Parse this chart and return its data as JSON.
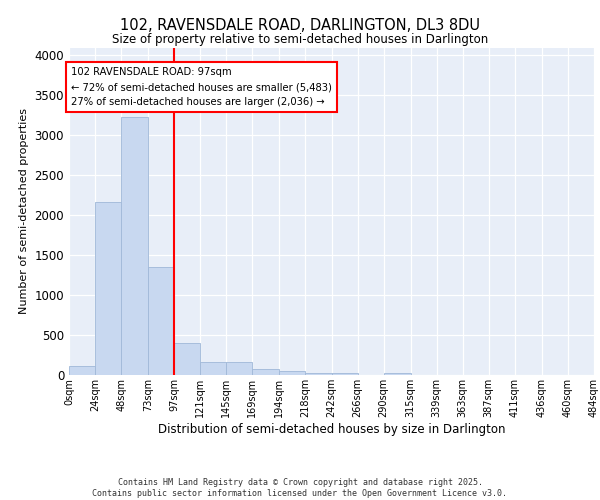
{
  "title": "102, RAVENSDALE ROAD, DARLINGTON, DL3 8DU",
  "subtitle": "Size of property relative to semi-detached houses in Darlington",
  "xlabel": "Distribution of semi-detached houses by size in Darlington",
  "ylabel": "Number of semi-detached properties",
  "bar_color": "#c8d8f0",
  "bar_edge_color": "#a0b8d8",
  "red_line_x": 97,
  "annotation_text": "102 RAVENSDALE ROAD: 97sqm\n← 72% of semi-detached houses are smaller (5,483)\n27% of semi-detached houses are larger (2,036) →",
  "annotation_box_color": "white",
  "annotation_box_edge": "red",
  "bin_edges": [
    0,
    24,
    48,
    73,
    97,
    121,
    145,
    169,
    194,
    218,
    242,
    266,
    290,
    315,
    339,
    363,
    387,
    411,
    436,
    460,
    484
  ],
  "bar_heights": [
    110,
    2160,
    3230,
    1350,
    405,
    160,
    160,
    80,
    55,
    30,
    30,
    0,
    30,
    0,
    0,
    0,
    0,
    0,
    0,
    0
  ],
  "ylim": [
    0,
    4100
  ],
  "yticks": [
    0,
    500,
    1000,
    1500,
    2000,
    2500,
    3000,
    3500,
    4000
  ],
  "xlim": [
    0,
    484
  ],
  "background_color": "#e8eef8",
  "grid_color": "white",
  "footer_text": "Contains HM Land Registry data © Crown copyright and database right 2025.\nContains public sector information licensed under the Open Government Licence v3.0.",
  "tick_labels": [
    "0sqm",
    "24sqm",
    "48sqm",
    "73sqm",
    "97sqm",
    "121sqm",
    "145sqm",
    "169sqm",
    "194sqm",
    "218sqm",
    "242sqm",
    "266sqm",
    "290sqm",
    "315sqm",
    "339sqm",
    "363sqm",
    "387sqm",
    "411sqm",
    "436sqm",
    "460sqm",
    "484sqm"
  ]
}
